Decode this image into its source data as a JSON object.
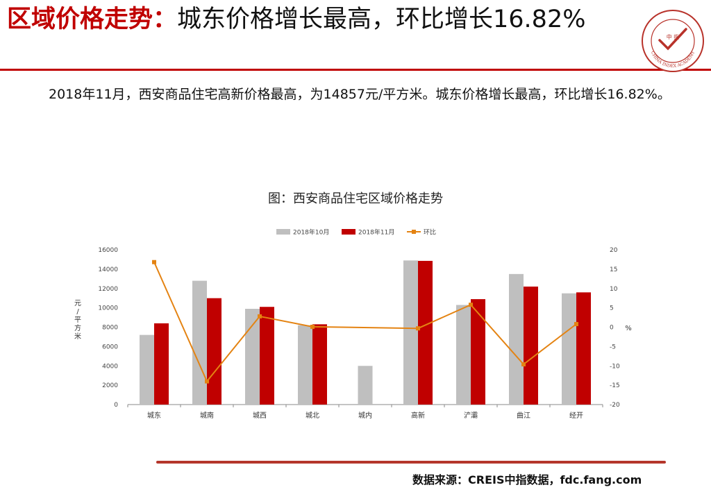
{
  "header": {
    "title_accent": "区域价格走势：",
    "title_rest": "城东价格增长最高，环比增长16.82%"
  },
  "logo": {
    "inner_text": "中 指",
    "ring_text": "CHINA INDEX ACADEMY"
  },
  "summary": "2018年11月，西安商品住宅高新价格最高，为14857元/平方米。城东价格增长最高，环比增长16.82%。",
  "chart_data": {
    "type": "bar",
    "title": "图：西安商品住宅区域价格走势",
    "categories": [
      "城东",
      "城南",
      "城西",
      "城北",
      "城内",
      "高新",
      "浐灞",
      "曲江",
      "经开"
    ],
    "series": [
      {
        "name": "2018年10月",
        "type": "bar",
        "color": "#bfbfbf",
        "values": [
          7200,
          12800,
          9900,
          8200,
          4000,
          14900,
          10300,
          13500,
          11500
        ]
      },
      {
        "name": "2018年11月",
        "type": "bar",
        "color": "#c00000",
        "values": [
          8400,
          11000,
          10100,
          8300,
          null,
          14857,
          10900,
          12200,
          11600
        ]
      },
      {
        "name": "环比",
        "type": "line",
        "axis": "right",
        "color": "#e48312",
        "values": [
          16.82,
          -14,
          2.8,
          0.1,
          null,
          -0.3,
          5.8,
          -9.6,
          0.8
        ]
      }
    ],
    "ylabel": "元/平方米",
    "y2label": "%",
    "ylim": [
      0,
      16000
    ],
    "y2lim": [
      -20,
      20
    ],
    "yticks": [
      0,
      2000,
      4000,
      6000,
      8000,
      10000,
      12000,
      14000,
      16000
    ],
    "y2ticks": [
      -20,
      -15,
      -10,
      -5,
      0,
      5,
      10,
      15,
      20
    ],
    "legend_position": "top",
    "grid": false
  },
  "source": "数据来源：CREIS中指数据，fdc.fang.com"
}
